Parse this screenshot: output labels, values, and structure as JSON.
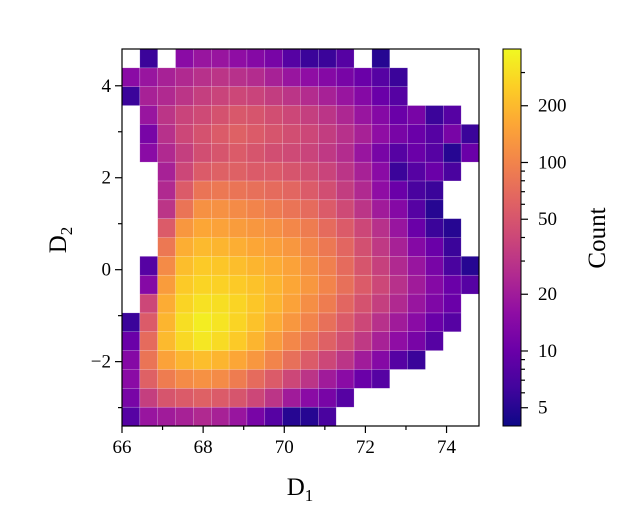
{
  "chart_data": {
    "type": "heatmap",
    "title": "",
    "xlabel": "D",
    "xlabel_sub": "1",
    "ylabel": "D",
    "ylabel_sub": "2",
    "xlim": [
      66,
      74.8
    ],
    "ylim": [
      -3.4,
      4.8
    ],
    "xticks": [
      66,
      68,
      70,
      72,
      74
    ],
    "xtick_labels": [
      "66",
      "68",
      "70",
      "72",
      "74"
    ],
    "yticks": [
      -2,
      0,
      2,
      4
    ],
    "ytick_labels": [
      "−2",
      "0",
      "2",
      "4"
    ],
    "grid": false,
    "colormap": "plasma",
    "colorbar": {
      "label": "Count",
      "scale": "log",
      "range": [
        4,
        400
      ],
      "ticks": [
        5,
        10,
        20,
        50,
        100,
        200
      ],
      "tick_labels": [
        "5",
        "10",
        "20",
        "50",
        "100",
        "200"
      ]
    },
    "bins": {
      "x_edges": [
        66.0,
        66.44,
        66.88,
        67.32,
        67.76,
        68.2,
        68.64,
        69.08,
        69.52,
        69.96,
        70.4,
        70.84,
        71.28,
        71.72,
        72.16,
        72.6,
        73.04,
        73.48,
        73.92,
        74.36,
        74.8
      ],
      "y_edges": [
        -3.4,
        -2.99,
        -2.58,
        -2.17,
        -1.76,
        -1.35,
        -0.94,
        -0.53,
        -0.12,
        0.29,
        0.7,
        1.11,
        1.52,
        1.93,
        2.34,
        2.75,
        3.16,
        3.57,
        3.98,
        4.39,
        4.8
      ]
    },
    "counts": [
      [
        8,
        18,
        20,
        22,
        25,
        22,
        18,
        12,
        8,
        5,
        5,
        7,
        null,
        null,
        null,
        null,
        null,
        null,
        null,
        null
      ],
      [
        12,
        35,
        50,
        55,
        60,
        55,
        50,
        40,
        30,
        20,
        15,
        12,
        8,
        null,
        null,
        null,
        null,
        null,
        null,
        null
      ],
      [
        15,
        60,
        90,
        110,
        120,
        110,
        90,
        70,
        55,
        40,
        30,
        20,
        15,
        10,
        8,
        null,
        null,
        null,
        null,
        null
      ],
      [
        14,
        80,
        150,
        190,
        210,
        190,
        160,
        130,
        100,
        75,
        55,
        40,
        30,
        20,
        14,
        8,
        6,
        null,
        null,
        null
      ],
      [
        10,
        70,
        200,
        280,
        330,
        290,
        240,
        190,
        140,
        105,
        80,
        60,
        45,
        32,
        22,
        16,
        12,
        8,
        null,
        null
      ],
      [
        6,
        55,
        190,
        300,
        350,
        320,
        270,
        220,
        170,
        130,
        100,
        75,
        55,
        40,
        28,
        20,
        15,
        10,
        8,
        null
      ],
      [
        null,
        40,
        170,
        270,
        310,
        300,
        270,
        230,
        190,
        150,
        115,
        90,
        65,
        48,
        35,
        25,
        18,
        13,
        10,
        null
      ],
      [
        null,
        14,
        140,
        240,
        270,
        260,
        240,
        220,
        190,
        160,
        130,
        100,
        75,
        55,
        40,
        28,
        20,
        14,
        10,
        8
      ],
      [
        null,
        8,
        110,
        210,
        240,
        230,
        210,
        190,
        170,
        150,
        120,
        95,
        70,
        50,
        36,
        25,
        18,
        12,
        7,
        5
      ],
      [
        null,
        null,
        85,
        175,
        200,
        190,
        175,
        160,
        145,
        130,
        105,
        85,
        65,
        46,
        32,
        22,
        14,
        10,
        6,
        null
      ],
      [
        null,
        null,
        55,
        130,
        160,
        150,
        140,
        130,
        120,
        105,
        90,
        70,
        55,
        40,
        28,
        18,
        10,
        6,
        5,
        null
      ],
      [
        null,
        null,
        30,
        80,
        120,
        120,
        110,
        100,
        90,
        80,
        70,
        55,
        42,
        30,
        20,
        14,
        8,
        5,
        null,
        null
      ],
      [
        null,
        null,
        25,
        55,
        80,
        85,
        80,
        75,
        70,
        65,
        55,
        45,
        34,
        25,
        16,
        10,
        7,
        6,
        null,
        null
      ],
      [
        null,
        null,
        22,
        40,
        55,
        60,
        60,
        55,
        55,
        50,
        45,
        38,
        30,
        22,
        15,
        6,
        8,
        10,
        7,
        null
      ],
      [
        null,
        15,
        25,
        35,
        45,
        50,
        55,
        50,
        45,
        42,
        38,
        32,
        26,
        18,
        12,
        8,
        10,
        8,
        5,
        10
      ],
      [
        null,
        12,
        28,
        40,
        48,
        55,
        60,
        55,
        50,
        45,
        40,
        34,
        28,
        22,
        16,
        12,
        10,
        8,
        12,
        6
      ],
      [
        null,
        18,
        30,
        38,
        42,
        48,
        52,
        50,
        45,
        40,
        35,
        30,
        24,
        18,
        14,
        10,
        12,
        6,
        8,
        null
      ],
      [
        6,
        22,
        25,
        30,
        35,
        38,
        40,
        38,
        34,
        30,
        26,
        22,
        18,
        14,
        10,
        8,
        null,
        null,
        null,
        null
      ],
      [
        15,
        18,
        22,
        25,
        28,
        30,
        28,
        26,
        22,
        18,
        16,
        14,
        12,
        10,
        8,
        6,
        null,
        null,
        null,
        null
      ],
      [
        null,
        6,
        null,
        15,
        18,
        18,
        16,
        14,
        12,
        8,
        6,
        6,
        8,
        null,
        5,
        null,
        null,
        null,
        null,
        null
      ]
    ]
  }
}
